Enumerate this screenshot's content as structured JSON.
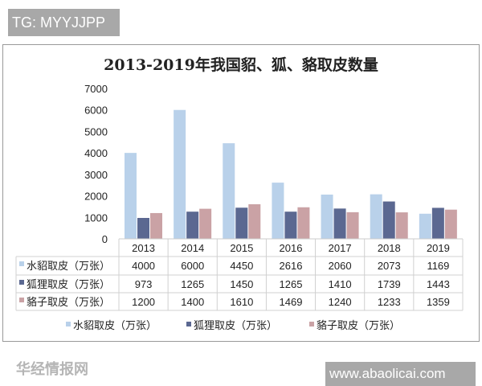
{
  "tag_label": "TG: MYYJJPP",
  "site_label": "www.abaolicai.com",
  "watermark": "华经情报网",
  "colors": {
    "s0": "#b9d1ea",
    "s1": "#5b6891",
    "s2": "#caa2a5"
  },
  "chart_data": {
    "type": "bar",
    "title": "2013-2019年我国貂、狐、貉取皮数量",
    "categories": [
      "2013",
      "2014",
      "2015",
      "2016",
      "2017",
      "2018",
      "2019"
    ],
    "ylim": [
      0,
      7000
    ],
    "yticks": [
      "0",
      "1000",
      "2000",
      "3000",
      "4000",
      "5000",
      "6000",
      "7000"
    ],
    "legend_position": "bottom",
    "series": [
      {
        "name": "水貂取皮（万张）",
        "values": [
          4000,
          6000,
          4450,
          2616,
          2060,
          2073,
          1169
        ]
      },
      {
        "name": "狐狸取皮（万张）",
        "values": [
          973,
          1265,
          1450,
          1265,
          1410,
          1739,
          1443
        ]
      },
      {
        "name": "貉子取皮（万张）",
        "values": [
          1200,
          1400,
          1610,
          1469,
          1240,
          1233,
          1359
        ]
      }
    ]
  }
}
